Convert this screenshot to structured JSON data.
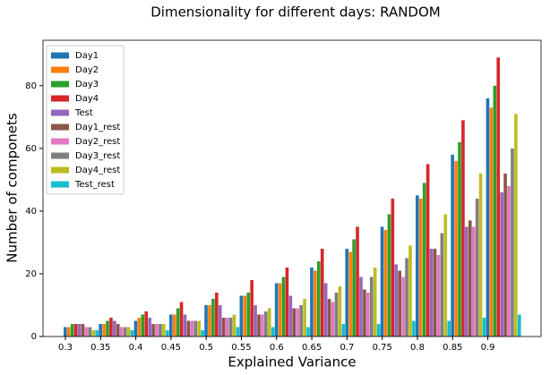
{
  "chart_data": {
    "type": "bar",
    "title": "Dimensionality for different days: RANDOM",
    "xlabel": "Explained Variance",
    "ylabel": "Number of componets",
    "categories": [
      "0.3",
      "0.35",
      "0.4",
      "0.45",
      "0.5",
      "0.55",
      "0.6",
      "0.65",
      "0.7",
      "0.75",
      "0.8",
      "0.85",
      "0.9"
    ],
    "series": [
      {
        "name": "Day1",
        "color": "#1f77b4",
        "values": [
          3,
          4,
          5,
          7,
          10,
          13,
          17,
          22,
          28,
          35,
          45,
          58,
          76
        ]
      },
      {
        "name": "Day2",
        "color": "#ff7f0e",
        "values": [
          3,
          4,
          6,
          7,
          10,
          13,
          17,
          21,
          27,
          34,
          44,
          56,
          73
        ]
      },
      {
        "name": "Day3",
        "color": "#2ca02c",
        "values": [
          4,
          5,
          7,
          9,
          12,
          14,
          19,
          24,
          31,
          39,
          49,
          62,
          80
        ]
      },
      {
        "name": "Day4",
        "color": "#d62728",
        "values": [
          4,
          6,
          8,
          11,
          14,
          18,
          22,
          28,
          35,
          44,
          55,
          69,
          89
        ]
      },
      {
        "name": "Test",
        "color": "#9467bd",
        "values": [
          4,
          5,
          6,
          7,
          10,
          10,
          13,
          17,
          19,
          23,
          28,
          35,
          46
        ]
      },
      {
        "name": "Day1_rest",
        "color": "#8c564b",
        "values": [
          4,
          4,
          4,
          5,
          6,
          7,
          9,
          12,
          15,
          21,
          28,
          37,
          52
        ]
      },
      {
        "name": "Day2_rest",
        "color": "#e377c2",
        "values": [
          3,
          3,
          4,
          5,
          6,
          7,
          9,
          11,
          14,
          19,
          26,
          35,
          48
        ]
      },
      {
        "name": "Day3_rest",
        "color": "#7f7f7f",
        "values": [
          3,
          3,
          4,
          5,
          6,
          8,
          10,
          14,
          19,
          25,
          33,
          44,
          60
        ]
      },
      {
        "name": "Day4_rest",
        "color": "#bcbd22",
        "values": [
          2,
          3,
          4,
          5,
          7,
          9,
          12,
          16,
          22,
          29,
          39,
          52,
          71
        ]
      },
      {
        "name": "Test_rest",
        "color": "#17becf",
        "values": [
          2,
          2,
          2,
          2,
          3,
          3,
          3,
          4,
          4,
          5,
          5,
          6,
          7
        ]
      }
    ],
    "ylim": [
      0,
      94.5
    ],
    "yticks": [
      0,
      20,
      40,
      60,
      80
    ],
    "legend": "upper left",
    "grid": false
  }
}
